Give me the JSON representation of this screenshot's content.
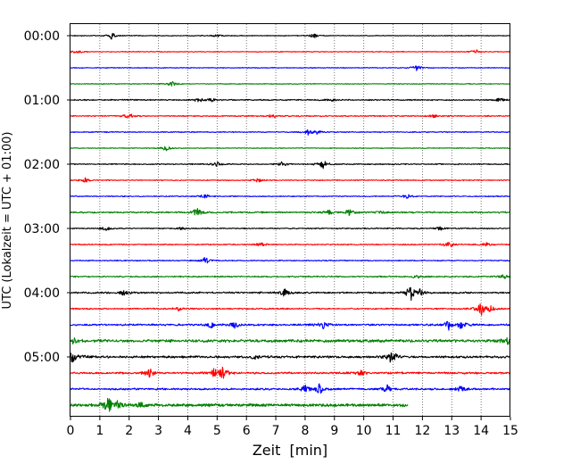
{
  "chart_data": {
    "type": "line",
    "title": "",
    "xlabel": "Zeit  [min]",
    "ylabel": "UTC (Lokalzeit = UTC + 01:00)",
    "xlim": [
      0,
      15
    ],
    "x_ticks": [
      0,
      1,
      2,
      3,
      4,
      5,
      6,
      7,
      8,
      9,
      10,
      11,
      12,
      13,
      14,
      15
    ],
    "x_tick_labels": [
      "0",
      "1",
      "2",
      "3",
      "4",
      "5",
      "6",
      "7",
      "8",
      "9",
      "10",
      "11",
      "12",
      "13",
      "14",
      "15"
    ],
    "y_tick_labels": [
      "00:00",
      "01:00",
      "02:00",
      "03:00",
      "04:00",
      "05:00"
    ],
    "grid": "vertical dotted lines at each minute",
    "row_interval_min": 15,
    "color_cycle": [
      "#000000",
      "#ff0000",
      "#0000ff",
      "#008000"
    ],
    "rows": [
      {
        "start": "00:00",
        "color": "#000000",
        "end_min": 15,
        "noise": 0.35,
        "events": [
          [
            1.4,
            4
          ],
          [
            5.0,
            1.5
          ],
          [
            8.3,
            2.5
          ]
        ]
      },
      {
        "start": "00:15",
        "color": "#ff0000",
        "end_min": 15,
        "noise": 0.35,
        "events": [
          [
            0.25,
            2
          ],
          [
            13.8,
            3
          ]
        ]
      },
      {
        "start": "00:30",
        "color": "#0000ff",
        "end_min": 15,
        "noise": 0.35,
        "events": [
          [
            11.8,
            3.5
          ]
        ]
      },
      {
        "start": "00:45",
        "color": "#008000",
        "end_min": 15,
        "noise": 0.35,
        "events": [
          [
            3.45,
            3
          ]
        ]
      },
      {
        "start": "01:00",
        "color": "#000000",
        "end_min": 15,
        "noise": 0.55,
        "events": [
          [
            4.4,
            2.5
          ],
          [
            4.8,
            2
          ],
          [
            8.9,
            1.5
          ],
          [
            14.6,
            3
          ]
        ]
      },
      {
        "start": "01:15",
        "color": "#ff0000",
        "end_min": 15,
        "noise": 0.5,
        "events": [
          [
            2.0,
            3
          ],
          [
            6.9,
            2.5
          ],
          [
            12.4,
            2
          ]
        ]
      },
      {
        "start": "01:30",
        "color": "#0000ff",
        "end_min": 15,
        "noise": 0.45,
        "events": [
          [
            8.1,
            3
          ],
          [
            8.4,
            2
          ]
        ]
      },
      {
        "start": "01:45",
        "color": "#008000",
        "end_min": 15,
        "noise": 0.35,
        "events": [
          [
            3.25,
            3
          ]
        ]
      },
      {
        "start": "02:00",
        "color": "#000000",
        "end_min": 15,
        "noise": 0.5,
        "events": [
          [
            5.0,
            2.5
          ],
          [
            7.2,
            2
          ],
          [
            8.6,
            5
          ]
        ]
      },
      {
        "start": "02:15",
        "color": "#ff0000",
        "end_min": 15,
        "noise": 0.45,
        "events": [
          [
            0.5,
            2.5
          ],
          [
            6.4,
            2
          ]
        ]
      },
      {
        "start": "02:30",
        "color": "#0000ff",
        "end_min": 15,
        "noise": 0.45,
        "events": [
          [
            4.6,
            2.5
          ],
          [
            11.5,
            2.5
          ]
        ]
      },
      {
        "start": "02:45",
        "color": "#008000",
        "end_min": 15,
        "noise": 0.7,
        "events": [
          [
            4.3,
            5
          ],
          [
            8.8,
            2.5
          ],
          [
            9.5,
            3.5
          ],
          [
            10.6,
            2
          ]
        ]
      },
      {
        "start": "03:00",
        "color": "#000000",
        "end_min": 15,
        "noise": 0.5,
        "events": [
          [
            1.2,
            2.5
          ],
          [
            3.8,
            1.5
          ],
          [
            12.6,
            2
          ]
        ]
      },
      {
        "start": "03:15",
        "color": "#ff0000",
        "end_min": 15,
        "noise": 0.5,
        "events": [
          [
            6.5,
            2
          ],
          [
            12.9,
            4
          ],
          [
            14.2,
            2
          ]
        ]
      },
      {
        "start": "03:30",
        "color": "#0000ff",
        "end_min": 15,
        "noise": 0.45,
        "events": [
          [
            4.6,
            4
          ]
        ]
      },
      {
        "start": "03:45",
        "color": "#008000",
        "end_min": 15,
        "noise": 0.6,
        "events": [
          [
            11.8,
            2
          ],
          [
            14.8,
            3
          ]
        ]
      },
      {
        "start": "04:00",
        "color": "#000000",
        "end_min": 15,
        "noise": 0.75,
        "events": [
          [
            1.8,
            2.5
          ],
          [
            7.3,
            4
          ],
          [
            11.6,
            9
          ],
          [
            11.9,
            4
          ]
        ]
      },
      {
        "start": "04:15",
        "color": "#ff0000",
        "end_min": 15,
        "noise": 0.6,
        "events": [
          [
            3.7,
            2
          ],
          [
            14.0,
            8
          ],
          [
            14.3,
            4
          ]
        ]
      },
      {
        "start": "04:30",
        "color": "#0000ff",
        "end_min": 15,
        "noise": 0.85,
        "events": [
          [
            4.8,
            3
          ],
          [
            5.6,
            3
          ],
          [
            8.6,
            4.5
          ],
          [
            12.9,
            5
          ],
          [
            13.3,
            5
          ]
        ]
      },
      {
        "start": "04:45",
        "color": "#008000",
        "end_min": 15,
        "noise": 1.3,
        "events": [
          [
            0.1,
            3
          ],
          [
            14.9,
            3
          ]
        ]
      },
      {
        "start": "05:00",
        "color": "#000000",
        "end_min": 15,
        "noise": 1.0,
        "events": [
          [
            0.05,
            7
          ],
          [
            0.4,
            3
          ],
          [
            6.3,
            2.5
          ],
          [
            10.9,
            5
          ],
          [
            11.1,
            3
          ]
        ]
      },
      {
        "start": "05:15",
        "color": "#ff0000",
        "end_min": 15,
        "noise": 0.85,
        "events": [
          [
            2.7,
            5
          ],
          [
            4.9,
            5
          ],
          [
            5.2,
            8
          ],
          [
            9.9,
            2.5
          ]
        ]
      },
      {
        "start": "05:30",
        "color": "#0000ff",
        "end_min": 15,
        "noise": 0.85,
        "events": [
          [
            8.0,
            5
          ],
          [
            8.5,
            6
          ],
          [
            10.8,
            4
          ],
          [
            13.3,
            3.5
          ]
        ]
      },
      {
        "start": "05:45",
        "color": "#008000",
        "end_min": 11.5,
        "noise": 1.3,
        "events": [
          [
            1.3,
            9
          ],
          [
            1.6,
            4
          ],
          [
            2.4,
            3
          ]
        ]
      }
    ]
  }
}
